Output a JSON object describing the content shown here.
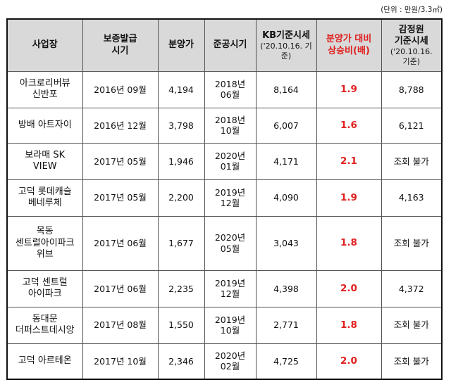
{
  "unit_note": "(단위 : 만원/3.3㎡)",
  "headers": {
    "site": "사업장",
    "guarantee": "보증발급\n시기",
    "price": "분양가",
    "completion": "준공시기",
    "kb": "KB기준시세",
    "kb_sub": "('20.10.16. 기준)",
    "ratio": "분양가 대비\n상승비(배)",
    "appraisal": "감정원\n기준시세",
    "appraisal_sub": "('20.10.16.\n기준)"
  },
  "rows": [
    {
      "site": "아크로리버뷰\n신반포",
      "guarantee": "2016년 09월",
      "price": "4,194",
      "completion": "2018년\n06월",
      "kb": "8,164",
      "ratio": "1.9",
      "appraisal": "8,788"
    },
    {
      "site": "방배 아트자이",
      "guarantee": "2016년 12월",
      "price": "3,798",
      "completion": "2018년\n10월",
      "kb": "6,007",
      "ratio": "1.6",
      "appraisal": "6,121"
    },
    {
      "site": "보라매 SK\nVIEW",
      "guarantee": "2017년 05월",
      "price": "1,946",
      "completion": "2020년\n01월",
      "kb": "4,171",
      "ratio": "2.1",
      "appraisal": "조회 불가"
    },
    {
      "site": "고덕 롯데캐슬\n베네루체",
      "guarantee": "2017년 05월",
      "price": "2,200",
      "completion": "2019년\n12월",
      "kb": "4,090",
      "ratio": "1.9",
      "appraisal": "4,163"
    },
    {
      "site": "목동\n센트럴아이파크\n위브",
      "guarantee": "2017년 06월",
      "price": "1,677",
      "completion": "2020년\n05월",
      "kb": "3,043",
      "ratio": "1.8",
      "appraisal": "조회 불가"
    },
    {
      "site": "고덕 센트럴\n아이파크",
      "guarantee": "2017년 06월",
      "price": "2,235",
      "completion": "2019년\n12월",
      "kb": "4,398",
      "ratio": "2.0",
      "appraisal": "4,372"
    },
    {
      "site": "동대문\n더퍼스트데시앙",
      "guarantee": "2017년 08월",
      "price": "1,550",
      "completion": "2019년\n10월",
      "kb": "2,771",
      "ratio": "1.8",
      "appraisal": "조회 불가"
    },
    {
      "site": "고덕 아르테온",
      "guarantee": "2017년 10월",
      "price": "2,346",
      "completion": "2020년\n02월",
      "kb": "4,725",
      "ratio": "2.0",
      "appraisal": "조회 불가"
    }
  ]
}
